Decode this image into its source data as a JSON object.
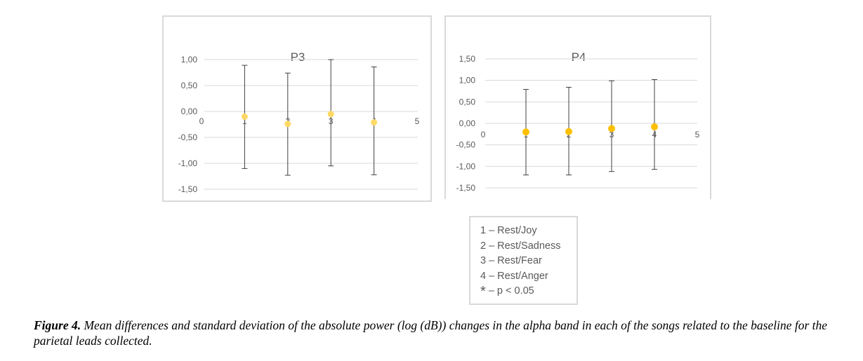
{
  "chart_data": [
    {
      "type": "scatter",
      "title": "P3",
      "xlim": [
        0,
        5
      ],
      "x_ticks": [
        "0",
        "1",
        "2",
        "3",
        "4",
        "5"
      ],
      "ylim": [
        -1.5,
        1.0
      ],
      "y_ticks": [
        "1,00",
        "0,50",
        "0,00",
        "-0,50",
        "-1,00",
        "-1,50"
      ],
      "y_tick_values": [
        1.0,
        0.5,
        0.0,
        -0.5,
        -1.0,
        -1.5
      ],
      "grid": true,
      "marker_color": "#ffd966",
      "x": [
        1,
        2,
        3,
        4
      ],
      "means": [
        -0.1,
        -0.24,
        -0.05,
        -0.21
      ],
      "error_upper": [
        0.89,
        0.74,
        1.0,
        0.86
      ],
      "error_lower": [
        -1.1,
        -1.23,
        -1.05,
        -1.22
      ]
    },
    {
      "type": "scatter",
      "title": "P4",
      "xlim": [
        0,
        5
      ],
      "x_ticks": [
        "0",
        "1",
        "2",
        "3",
        "4",
        "5"
      ],
      "ylim": [
        -1.5,
        1.5
      ],
      "y_ticks": [
        "1,50",
        "1,00",
        "0,50",
        "0,00",
        "-0,50",
        "-1,00",
        "-1,50"
      ],
      "y_tick_values": [
        1.5,
        1.0,
        0.5,
        0.0,
        -0.5,
        -1.0,
        -1.5
      ],
      "grid": true,
      "marker_color": "#ffc000",
      "x": [
        1,
        2,
        3,
        4
      ],
      "means": [
        -0.2,
        -0.19,
        -0.12,
        -0.08
      ],
      "error_upper": [
        0.79,
        0.84,
        0.99,
        1.02
      ],
      "error_lower": [
        -1.2,
        -1.2,
        -1.12,
        -1.07
      ]
    }
  ],
  "legend": {
    "items": [
      "1 – Rest/Joy",
      "2 – Rest/Sadness",
      "3 – Rest/Fear",
      "4 – Rest/Anger"
    ],
    "significance_symbol": "*",
    "significance_text": " – p < 0.05"
  },
  "caption": {
    "label": "Figure 4.",
    "text": " Mean differences and standard deviation of the absolute power (log (dB)) changes in the alpha band in each of the songs related to the baseline for the parietal leads collected."
  }
}
